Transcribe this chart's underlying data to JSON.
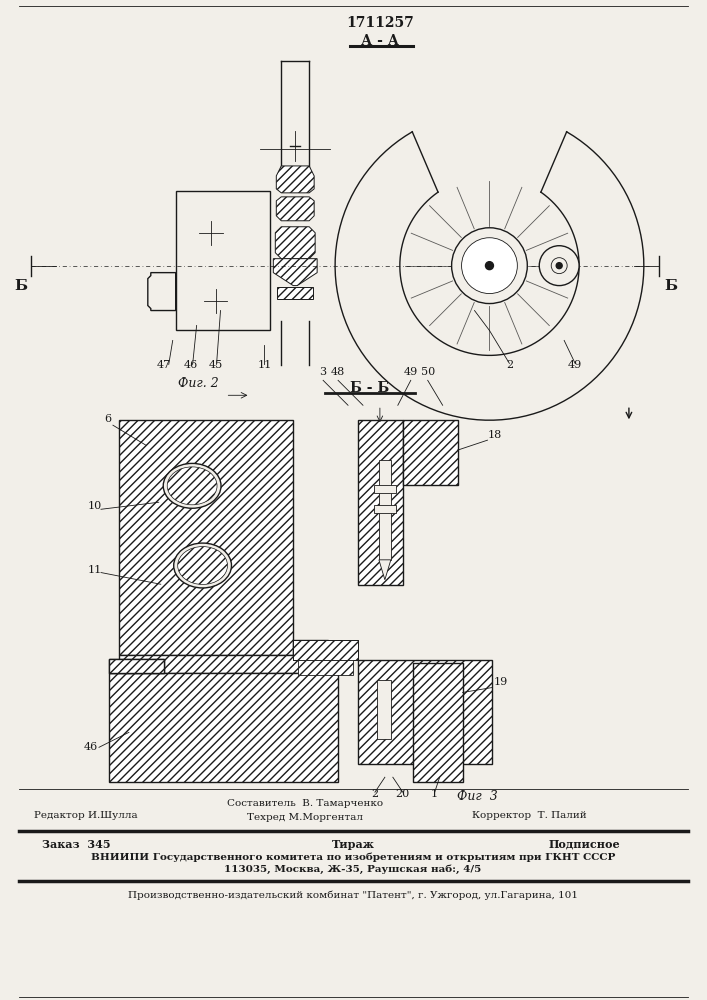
{
  "patent_number": "1711257",
  "section_aa": "А - А",
  "section_bb": "Б - Б",
  "fig2_label": "Фиг. 2",
  "fig3_label": "Фиг  3",
  "editor_line": "Редактор И.Шулла",
  "composer_line": "Составитель  В. Тамарченко",
  "techred_line": "Техред М.Моргентал",
  "corrector_line": "Корректор  Т. Палий",
  "order_line": "Заказ  345",
  "tirazh_line": "Тираж",
  "podpisnoe_line": "Подписное",
  "vniiipi_line1": "ВНИИПИ Государственного комитета по изобретениям и открытиям при ГКНТ СССР",
  "vniiipi_line2": "113035, Москва, Ж-35, Раушская наб:, 4/5",
  "proizv_line": "Производственно-издательский комбинат \"Патент\", г. Ужгород, ул.Гагарина, 101",
  "bg_color": "#f2efe9",
  "line_color": "#1a1a1a",
  "hatch_color": "#888888"
}
